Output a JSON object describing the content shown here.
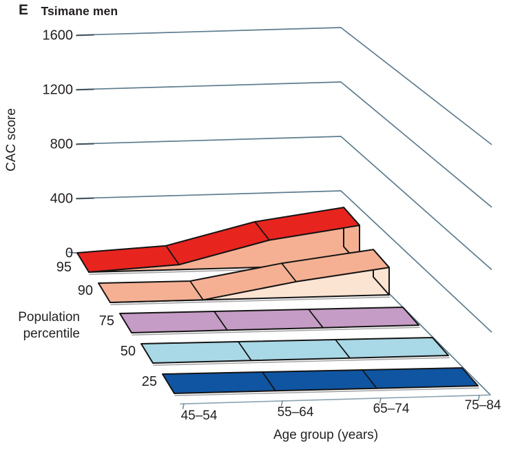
{
  "chart_data": {
    "type": "ribbon-3d-area",
    "panel_label": "E",
    "title": "Tsimane men",
    "xlabel": "Age group (years)",
    "ylabel": "CAC score",
    "depth_axis_label_lines": [
      "Population",
      "percentile"
    ],
    "categories": [
      "45–54",
      "55–64",
      "65–74",
      "75–84"
    ],
    "y_ticks": [
      0,
      400,
      800,
      1200,
      1600
    ],
    "ylim": [
      0,
      1600
    ],
    "grid": "y-level lines bent over back and right walls",
    "legend_position": "none",
    "percentile_axis_note": "rows from back to front: 95, 90, 75, 50, 25",
    "series": [
      {
        "name": "95",
        "values": [
          0,
          35,
          180,
          250
        ],
        "top_color": "#e8241f",
        "side_color": "#f5b093"
      },
      {
        "name": "90",
        "values": [
          0,
          0,
          105,
          175
        ],
        "top_color": "#f5b093",
        "side_color": "#fce4d3"
      },
      {
        "name": "75",
        "values": [
          0,
          0,
          0,
          0
        ],
        "top_color": "#c59cc5",
        "side_color": "#c59cc5"
      },
      {
        "name": "50",
        "values": [
          0,
          0,
          0,
          0
        ],
        "top_color": "#a9d8e6",
        "side_color": "#a9d8e6"
      },
      {
        "name": "25",
        "values": [
          0,
          0,
          0,
          0
        ],
        "top_color": "#0f55a2",
        "side_color": "#0f55a2"
      }
    ],
    "colors": {
      "gridline": "#5d7c8e",
      "gridline_stub": "#42525c",
      "axis_line": "#8aa2b0",
      "text": "#231f20",
      "outline": "#141414",
      "shadow": "#a6a6a6",
      "background": "#ffffff"
    }
  }
}
